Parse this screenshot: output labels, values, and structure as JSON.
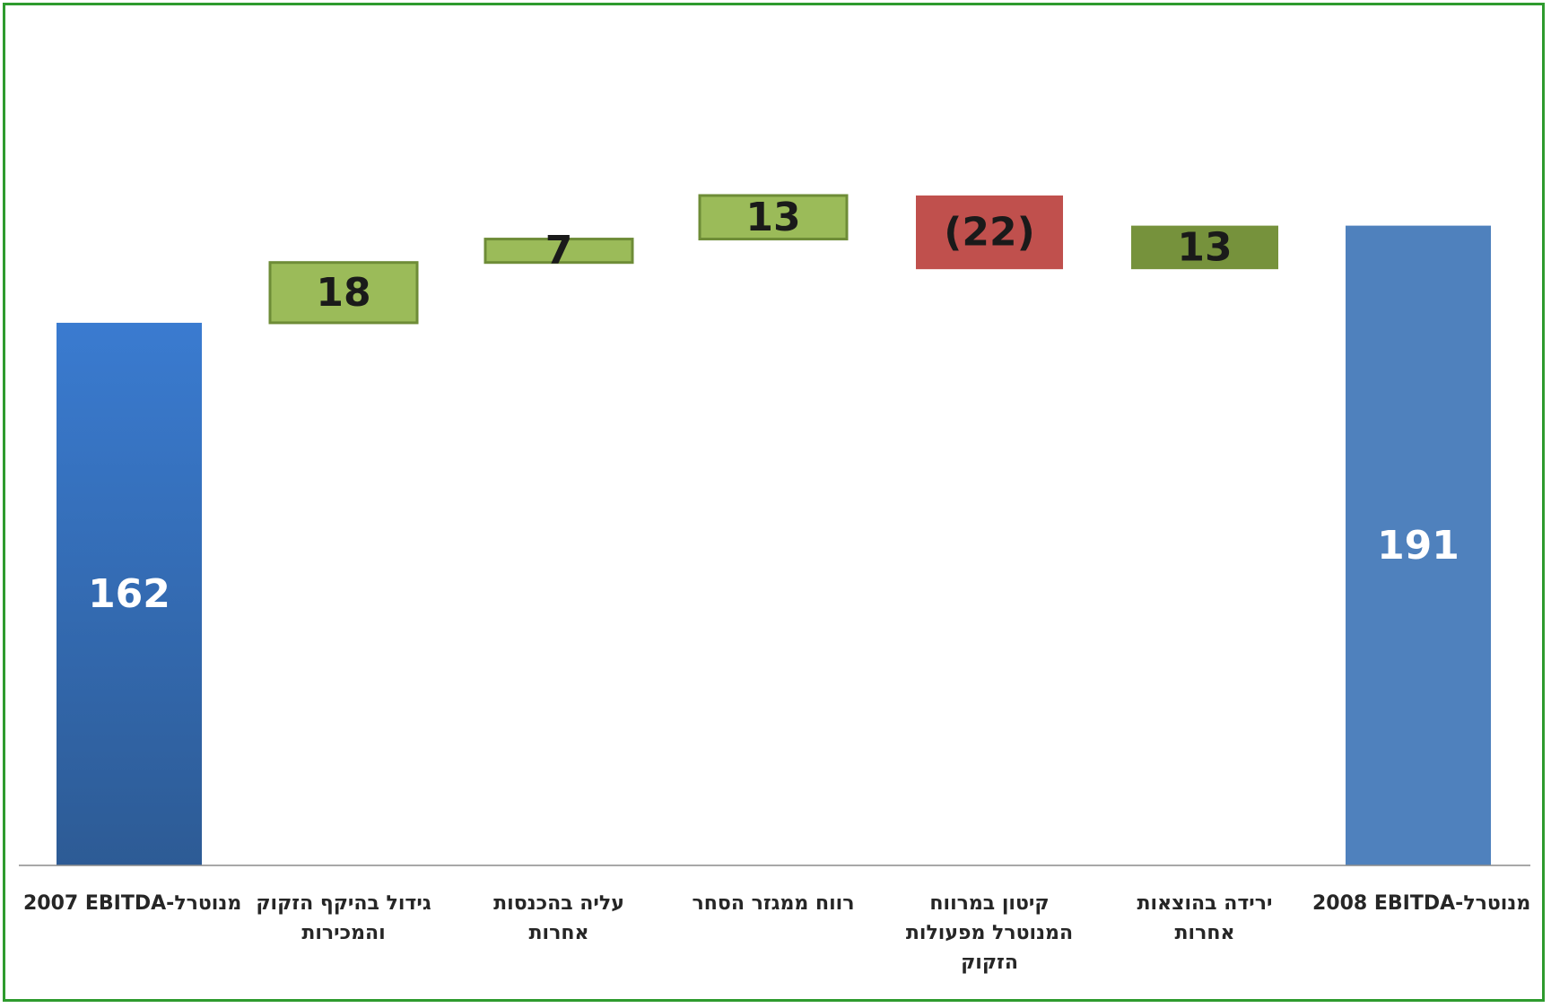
{
  "chart_data": {
    "type": "bar",
    "subtype": "waterfall",
    "categories": [
      "2007 EBITDA-מנוטרל",
      "גידול בהיקף הזקוק\nוהמכירות",
      "עליה בהכנסות\nאחרות",
      "רווח ממגזר הסחר",
      "קיטון במרווח\nהמנוטרל מפעולות\nהזקוק",
      "ירידה בהוצאות\nאחרות",
      "2008 EBITDA-מנוטרל"
    ],
    "values": [
      162,
      18,
      7,
      13,
      -22,
      13,
      191
    ],
    "data_labels": [
      "162",
      "18",
      "7",
      "13",
      "(22)",
      "13",
      "191"
    ],
    "kinds": [
      "total",
      "increase",
      "increase",
      "increase",
      "decrease",
      "increase",
      "total"
    ],
    "title": "",
    "xlabel": "",
    "ylabel": "",
    "grid": false,
    "legend": "none",
    "colors": {
      "total_start_top": "#3a7bd0",
      "total_start_bottom": "#2d5b95",
      "total_end": "#4f81bd",
      "increase": "#9bbb59",
      "increase_border": "#6e8c37",
      "increase_last": "#76923c",
      "decrease": "#c0504d",
      "axis": "#8c8c8c",
      "label_dark": "#1a1a1a",
      "label_light": "#ffffff"
    }
  }
}
